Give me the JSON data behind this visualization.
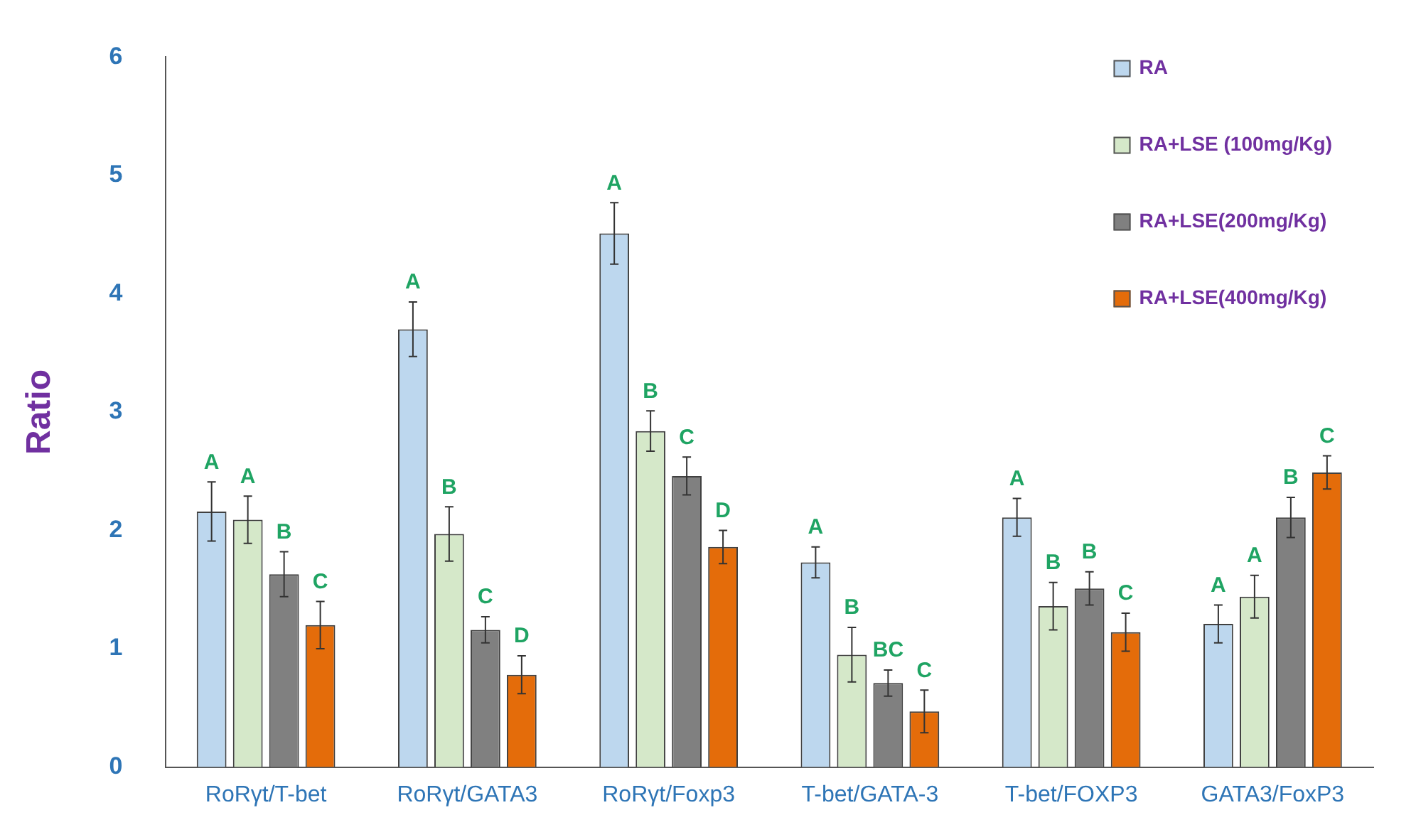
{
  "chart_data": {
    "type": "bar",
    "ylabel": "Ratio",
    "categories": [
      "RoRγt/T-bet",
      "RoRγt/GATA3",
      "RoRγt/Foxp3",
      "T-bet/GATA-3",
      "T-bet/FOXP3",
      "GATA3/FoxP3"
    ],
    "ylim": [
      0,
      6
    ],
    "yticks": [
      0,
      1,
      2,
      3,
      4,
      5,
      6
    ],
    "grid": false,
    "legend": "top right",
    "series": [
      {
        "name": "RA",
        "color": "#bdd7ee",
        "values": [
          2.16,
          3.7,
          4.51,
          1.73,
          2.11,
          1.21
        ],
        "errors": [
          0.25,
          0.23,
          0.26,
          0.13,
          0.16,
          0.16
        ],
        "value_labels": [
          "A",
          "A",
          "A",
          "A",
          "A",
          "A"
        ]
      },
      {
        "name": "RA+LSE (100mg/Kg)",
        "color": "#d5e8c9",
        "values": [
          2.09,
          1.97,
          2.84,
          0.95,
          1.36,
          1.44
        ],
        "errors": [
          0.2,
          0.23,
          0.17,
          0.23,
          0.2,
          0.18
        ],
        "value_labels": [
          "A",
          "B",
          "B",
          "B",
          "B",
          "A"
        ]
      },
      {
        "name": "RA+LSE(200mg/Kg)",
        "color": "#808080",
        "values": [
          1.63,
          1.16,
          2.46,
          0.71,
          1.51,
          2.11
        ],
        "errors": [
          0.19,
          0.11,
          0.16,
          0.11,
          0.14,
          0.17
        ],
        "value_labels": [
          "B",
          "C",
          "C",
          "BC",
          "B",
          "B"
        ]
      },
      {
        "name": "RA+LSE(400mg/Kg)",
        "color": "#e46c0a",
        "values": [
          1.2,
          0.78,
          1.86,
          0.47,
          1.14,
          2.49
        ],
        "errors": [
          0.2,
          0.16,
          0.14,
          0.18,
          0.16,
          0.14
        ],
        "value_labels": [
          "C",
          "D",
          "D",
          "C",
          "C",
          "C"
        ]
      }
    ]
  }
}
